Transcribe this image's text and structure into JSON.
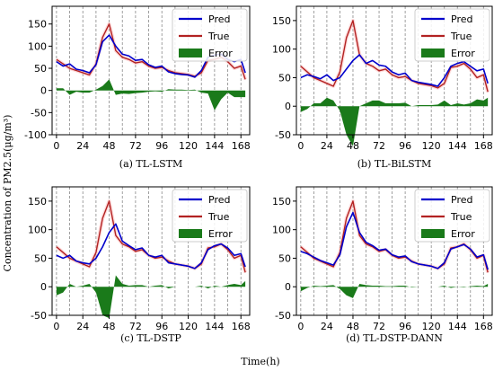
{
  "figure": {
    "ylabel": "Concentration of PM2.5(μg/m³)",
    "xlabel": "Time(h)"
  },
  "chart_data": [
    {
      "type": "line",
      "caption": "(a) TL-LSTM",
      "x_ticks": [
        0,
        24,
        48,
        72,
        96,
        120,
        144,
        168
      ],
      "y_ticks": [
        -100,
        -50,
        0,
        50,
        100,
        150
      ],
      "xlim": [
        -4,
        176
      ],
      "ylim": [
        -100,
        190
      ],
      "grid": "vertical dashed lines every 12 h",
      "legend": "top-right",
      "series": [
        {
          "name": "Pred",
          "color": "#0000cc",
          "x": [
            0,
            6,
            12,
            18,
            24,
            30,
            36,
            42,
            48,
            54,
            60,
            66,
            72,
            78,
            84,
            90,
            96,
            102,
            108,
            114,
            120,
            126,
            132,
            138,
            144,
            150,
            156,
            162,
            168,
            172
          ],
          "values": [
            65,
            55,
            60,
            48,
            45,
            40,
            58,
            110,
            125,
            100,
            82,
            78,
            68,
            70,
            58,
            52,
            55,
            42,
            38,
            36,
            35,
            30,
            45,
            75,
            80,
            82,
            70,
            65,
            70,
            40
          ]
        },
        {
          "name": "True",
          "color": "#b22222",
          "x": [
            0,
            6,
            12,
            18,
            24,
            30,
            36,
            42,
            48,
            54,
            60,
            66,
            72,
            78,
            84,
            90,
            96,
            102,
            108,
            114,
            120,
            126,
            132,
            138,
            144,
            150,
            156,
            162,
            168,
            172
          ],
          "values": [
            70,
            60,
            50,
            45,
            40,
            35,
            60,
            120,
            150,
            90,
            75,
            70,
            62,
            65,
            55,
            50,
            52,
            45,
            40,
            38,
            36,
            32,
            40,
            68,
            70,
            75,
            65,
            50,
            55,
            25
          ]
        },
        {
          "name": "Error",
          "color": "#1a7a1a",
          "x": [
            0,
            6,
            12,
            18,
            24,
            30,
            36,
            42,
            48,
            54,
            60,
            66,
            72,
            78,
            84,
            90,
            96,
            102,
            108,
            114,
            120,
            126,
            132,
            138,
            144,
            150,
            156,
            162,
            168,
            172
          ],
          "values": [
            5,
            5,
            -10,
            -3,
            -5,
            -5,
            2,
            10,
            25,
            -10,
            -7,
            -8,
            -6,
            -5,
            -3,
            -2,
            -3,
            3,
            2,
            2,
            1,
            2,
            -5,
            -7,
            -45,
            -20,
            -5,
            -15,
            -15,
            -15
          ]
        }
      ]
    },
    {
      "type": "line",
      "caption": "(b) TL-BiLSTM",
      "x_ticks": [
        0,
        24,
        48,
        72,
        96,
        120,
        144,
        168
      ],
      "y_ticks": [
        -50,
        0,
        50,
        100,
        150
      ],
      "xlim": [
        -4,
        176
      ],
      "ylim": [
        -50,
        175
      ],
      "grid": "vertical dashed lines every 12 h",
      "legend": "top-right",
      "series": [
        {
          "name": "Pred",
          "color": "#0000cc",
          "x": [
            0,
            6,
            12,
            18,
            24,
            30,
            36,
            42,
            48,
            54,
            60,
            66,
            72,
            78,
            84,
            90,
            96,
            102,
            108,
            114,
            120,
            126,
            132,
            138,
            144,
            150,
            156,
            162,
            168,
            172
          ],
          "values": [
            50,
            55,
            52,
            48,
            55,
            45,
            50,
            65,
            80,
            90,
            75,
            80,
            72,
            70,
            60,
            55,
            58,
            45,
            42,
            40,
            38,
            35,
            50,
            70,
            75,
            78,
            70,
            62,
            65,
            40
          ]
        },
        {
          "name": "True",
          "color": "#b22222",
          "x": [
            0,
            6,
            12,
            18,
            24,
            30,
            36,
            42,
            48,
            54,
            60,
            66,
            72,
            78,
            84,
            90,
            96,
            102,
            108,
            114,
            120,
            126,
            132,
            138,
            144,
            150,
            156,
            162,
            168,
            172
          ],
          "values": [
            70,
            60,
            50,
            45,
            40,
            35,
            60,
            120,
            150,
            90,
            75,
            70,
            62,
            65,
            55,
            50,
            52,
            45,
            40,
            38,
            36,
            32,
            40,
            68,
            70,
            75,
            65,
            50,
            55,
            25
          ]
        },
        {
          "name": "Error",
          "color": "#1a7a1a",
          "x": [
            0,
            6,
            12,
            18,
            24,
            30,
            36,
            42,
            48,
            54,
            60,
            66,
            72,
            78,
            84,
            90,
            96,
            102,
            108,
            114,
            120,
            126,
            132,
            138,
            144,
            150,
            156,
            162,
            168,
            172
          ],
          "values": [
            -10,
            -5,
            5,
            5,
            15,
            10,
            -8,
            -50,
            -70,
            0,
            5,
            10,
            10,
            5,
            5,
            5,
            6,
            0,
            2,
            2,
            2,
            3,
            10,
            2,
            5,
            3,
            5,
            12,
            10,
            15
          ]
        }
      ]
    },
    {
      "type": "line",
      "caption": "(c) TL-DSTP",
      "x_ticks": [
        0,
        24,
        48,
        72,
        96,
        120,
        144,
        168
      ],
      "y_ticks": [
        -50,
        0,
        50,
        100,
        150
      ],
      "xlim": [
        -4,
        176
      ],
      "ylim": [
        -50,
        175
      ],
      "grid": "vertical dashed lines every 12 h",
      "legend": "top-right",
      "series": [
        {
          "name": "Pred",
          "color": "#0000cc",
          "x": [
            0,
            6,
            12,
            18,
            24,
            30,
            36,
            42,
            48,
            54,
            60,
            66,
            72,
            78,
            84,
            90,
            96,
            102,
            108,
            114,
            120,
            126,
            132,
            138,
            144,
            150,
            156,
            162,
            168,
            172
          ],
          "values": [
            55,
            50,
            55,
            45,
            42,
            40,
            50,
            70,
            95,
            110,
            80,
            72,
            65,
            68,
            55,
            52,
            55,
            42,
            40,
            38,
            36,
            32,
            42,
            65,
            72,
            75,
            68,
            55,
            58,
            35
          ]
        },
        {
          "name": "True",
          "color": "#b22222",
          "x": [
            0,
            6,
            12,
            18,
            24,
            30,
            36,
            42,
            48,
            54,
            60,
            66,
            72,
            78,
            84,
            90,
            96,
            102,
            108,
            114,
            120,
            126,
            132,
            138,
            144,
            150,
            156,
            162,
            168,
            172
          ],
          "values": [
            70,
            60,
            50,
            45,
            40,
            35,
            60,
            120,
            150,
            90,
            75,
            70,
            62,
            65,
            55,
            50,
            52,
            45,
            40,
            38,
            36,
            32,
            40,
            68,
            70,
            75,
            65,
            50,
            55,
            25
          ]
        },
        {
          "name": "Error",
          "color": "#1a7a1a",
          "x": [
            0,
            6,
            12,
            18,
            24,
            30,
            36,
            42,
            48,
            54,
            60,
            66,
            72,
            78,
            84,
            90,
            96,
            102,
            108,
            114,
            120,
            126,
            132,
            138,
            144,
            150,
            156,
            162,
            168,
            172
          ],
          "values": [
            -15,
            -10,
            5,
            0,
            2,
            5,
            -10,
            -50,
            -55,
            20,
            5,
            2,
            3,
            3,
            0,
            2,
            3,
            -3,
            0,
            0,
            0,
            0,
            2,
            -3,
            2,
            0,
            3,
            5,
            3,
            10
          ]
        }
      ]
    },
    {
      "type": "line",
      "caption": "(d) TL-DSTP-DANN",
      "x_ticks": [
        0,
        24,
        48,
        72,
        96,
        120,
        144,
        168
      ],
      "y_ticks": [
        -50,
        0,
        50,
        100,
        150
      ],
      "xlim": [
        -4,
        176
      ],
      "ylim": [
        -50,
        175
      ],
      "grid": "vertical dashed lines every 12 h",
      "legend": "top-right",
      "series": [
        {
          "name": "Pred",
          "color": "#0000cc",
          "x": [
            0,
            6,
            12,
            18,
            24,
            30,
            36,
            42,
            48,
            54,
            60,
            66,
            72,
            78,
            84,
            90,
            96,
            102,
            108,
            114,
            120,
            126,
            132,
            138,
            144,
            150,
            156,
            162,
            168,
            172
          ],
          "values": [
            62,
            58,
            52,
            46,
            42,
            38,
            56,
            105,
            130,
            95,
            78,
            72,
            64,
            66,
            56,
            52,
            54,
            44,
            40,
            38,
            36,
            32,
            42,
            66,
            70,
            74,
            66,
            52,
            56,
            30
          ]
        },
        {
          "name": "True",
          "color": "#b22222",
          "x": [
            0,
            6,
            12,
            18,
            24,
            30,
            36,
            42,
            48,
            54,
            60,
            66,
            72,
            78,
            84,
            90,
            96,
            102,
            108,
            114,
            120,
            126,
            132,
            138,
            144,
            150,
            156,
            162,
            168,
            172
          ],
          "values": [
            70,
            60,
            50,
            45,
            40,
            35,
            60,
            120,
            150,
            90,
            75,
            70,
            62,
            65,
            55,
            50,
            52,
            45,
            40,
            38,
            36,
            32,
            40,
            68,
            70,
            75,
            65,
            50,
            55,
            25
          ]
        },
        {
          "name": "Error",
          "color": "#1a7a1a",
          "x": [
            0,
            6,
            12,
            18,
            24,
            30,
            36,
            42,
            48,
            54,
            60,
            66,
            72,
            78,
            84,
            90,
            96,
            102,
            108,
            114,
            120,
            126,
            132,
            138,
            144,
            150,
            156,
            162,
            168,
            172
          ],
          "values": [
            -8,
            -2,
            2,
            1,
            2,
            3,
            -4,
            -15,
            -20,
            5,
            3,
            2,
            2,
            1,
            1,
            2,
            2,
            -1,
            0,
            0,
            0,
            0,
            2,
            -2,
            0,
            -1,
            1,
            2,
            1,
            5
          ]
        }
      ]
    }
  ]
}
